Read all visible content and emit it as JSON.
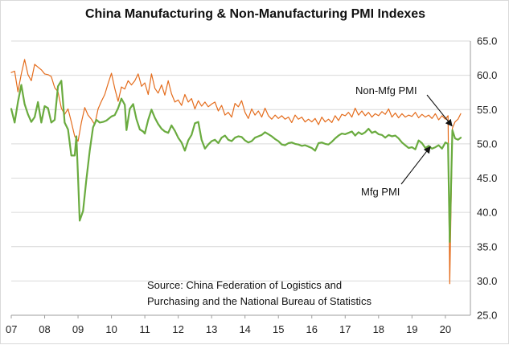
{
  "chart_data": {
    "type": "line",
    "title": "China Manufacturing & Non-Manufacturing PMI Indexes",
    "xlabel": "",
    "ylabel": "",
    "x_tick_labels": [
      "07",
      "08",
      "09",
      "10",
      "11",
      "12",
      "13",
      "14",
      "15",
      "16",
      "17",
      "18",
      "19",
      "20"
    ],
    "xlim": [
      2007.0,
      2020.75
    ],
    "ylim": [
      25.0,
      65.0
    ],
    "y_ticks": [
      25.0,
      30.0,
      35.0,
      40.0,
      45.0,
      50.0,
      55.0,
      60.0,
      65.0
    ],
    "y_tick_labels": [
      "25.0",
      "30.0",
      "35.0",
      "40.0",
      "45.0",
      "50.0",
      "55.0",
      "60.0",
      "65.0"
    ],
    "y_axis_position": "right",
    "grid": true,
    "series": [
      {
        "name": "Non-Mfg PMI",
        "color": "#e46c1c",
        "points": [
          [
            2007.0,
            60.4
          ],
          [
            2007.1,
            60.6
          ],
          [
            2007.2,
            57.6
          ],
          [
            2007.3,
            60.2
          ],
          [
            2007.4,
            62.3
          ],
          [
            2007.5,
            60.1
          ],
          [
            2007.6,
            59.2
          ],
          [
            2007.7,
            61.6
          ],
          [
            2007.8,
            61.2
          ],
          [
            2007.9,
            60.8
          ],
          [
            2008.0,
            60.2
          ],
          [
            2008.1,
            60.1
          ],
          [
            2008.2,
            59.8
          ],
          [
            2008.3,
            58.2
          ],
          [
            2008.4,
            57.6
          ],
          [
            2008.5,
            55.2
          ],
          [
            2008.6,
            54.3
          ],
          [
            2008.7,
            55.1
          ],
          [
            2008.8,
            53.2
          ],
          [
            2008.9,
            51.1
          ],
          [
            2009.0,
            50.4
          ],
          [
            2009.1,
            53.1
          ],
          [
            2009.2,
            55.3
          ],
          [
            2009.3,
            54.2
          ],
          [
            2009.4,
            53.6
          ],
          [
            2009.5,
            52.8
          ],
          [
            2009.6,
            55.1
          ],
          [
            2009.7,
            56.2
          ],
          [
            2009.8,
            57.2
          ],
          [
            2009.9,
            58.8
          ],
          [
            2010.0,
            60.3
          ],
          [
            2010.1,
            58.1
          ],
          [
            2010.2,
            56.2
          ],
          [
            2010.3,
            58.3
          ],
          [
            2010.4,
            58.0
          ],
          [
            2010.5,
            59.2
          ],
          [
            2010.6,
            58.6
          ],
          [
            2010.7,
            59.2
          ],
          [
            2010.8,
            60.2
          ],
          [
            2010.9,
            58.4
          ],
          [
            2011.0,
            58.9
          ],
          [
            2011.1,
            57.2
          ],
          [
            2011.2,
            60.2
          ],
          [
            2011.3,
            58.1
          ],
          [
            2011.4,
            57.4
          ],
          [
            2011.5,
            58.6
          ],
          [
            2011.6,
            57.1
          ],
          [
            2011.7,
            59.2
          ],
          [
            2011.8,
            57.3
          ],
          [
            2011.9,
            56.1
          ],
          [
            2012.0,
            56.4
          ],
          [
            2012.1,
            55.6
          ],
          [
            2012.2,
            57.2
          ],
          [
            2012.3,
            56.1
          ],
          [
            2012.4,
            56.6
          ],
          [
            2012.5,
            55.1
          ],
          [
            2012.6,
            56.3
          ],
          [
            2012.7,
            55.5
          ],
          [
            2012.8,
            56.1
          ],
          [
            2012.9,
            55.4
          ],
          [
            2013.0,
            55.8
          ],
          [
            2013.1,
            56.1
          ],
          [
            2013.2,
            54.8
          ],
          [
            2013.3,
            55.6
          ],
          [
            2013.4,
            54.2
          ],
          [
            2013.5,
            54.6
          ],
          [
            2013.6,
            53.9
          ],
          [
            2013.7,
            55.9
          ],
          [
            2013.8,
            55.4
          ],
          [
            2013.9,
            56.3
          ],
          [
            2014.0,
            54.6
          ],
          [
            2014.1,
            53.7
          ],
          [
            2014.2,
            55.1
          ],
          [
            2014.3,
            54.2
          ],
          [
            2014.4,
            54.8
          ],
          [
            2014.5,
            53.9
          ],
          [
            2014.6,
            55.2
          ],
          [
            2014.7,
            54.1
          ],
          [
            2014.8,
            53.6
          ],
          [
            2014.9,
            54.2
          ],
          [
            2015.0,
            53.7
          ],
          [
            2015.1,
            54.1
          ],
          [
            2015.2,
            53.6
          ],
          [
            2015.3,
            53.9
          ],
          [
            2015.4,
            53.1
          ],
          [
            2015.5,
            54.2
          ],
          [
            2015.6,
            53.6
          ],
          [
            2015.7,
            53.9
          ],
          [
            2015.8,
            53.2
          ],
          [
            2015.9,
            53.6
          ],
          [
            2016.0,
            53.2
          ],
          [
            2016.1,
            53.7
          ],
          [
            2016.2,
            52.8
          ],
          [
            2016.3,
            53.9
          ],
          [
            2016.4,
            53.2
          ],
          [
            2016.5,
            53.6
          ],
          [
            2016.6,
            53.1
          ],
          [
            2016.7,
            54.1
          ],
          [
            2016.8,
            53.4
          ],
          [
            2016.9,
            54.3
          ],
          [
            2017.0,
            54.1
          ],
          [
            2017.1,
            54.6
          ],
          [
            2017.2,
            53.9
          ],
          [
            2017.3,
            55.2
          ],
          [
            2017.4,
            54.2
          ],
          [
            2017.5,
            54.8
          ],
          [
            2017.6,
            54.1
          ],
          [
            2017.7,
            54.6
          ],
          [
            2017.8,
            53.9
          ],
          [
            2017.9,
            54.4
          ],
          [
            2018.0,
            54.1
          ],
          [
            2018.1,
            54.7
          ],
          [
            2018.2,
            54.3
          ],
          [
            2018.3,
            55.1
          ],
          [
            2018.4,
            53.9
          ],
          [
            2018.5,
            54.5
          ],
          [
            2018.6,
            53.8
          ],
          [
            2018.7,
            54.4
          ],
          [
            2018.8,
            53.9
          ],
          [
            2018.9,
            54.2
          ],
          [
            2019.0,
            54.0
          ],
          [
            2019.1,
            54.6
          ],
          [
            2019.2,
            53.8
          ],
          [
            2019.3,
            54.3
          ],
          [
            2019.4,
            53.9
          ],
          [
            2019.5,
            54.2
          ],
          [
            2019.6,
            53.7
          ],
          [
            2019.7,
            54.4
          ],
          [
            2019.8,
            53.5
          ],
          [
            2019.9,
            54.1
          ],
          [
            2020.0,
            53.6
          ],
          [
            2020.08,
            54.1
          ],
          [
            2020.13,
            29.6
          ],
          [
            2020.21,
            52.3
          ],
          [
            2020.29,
            53.2
          ],
          [
            2020.38,
            53.6
          ],
          [
            2020.46,
            54.4
          ]
        ]
      },
      {
        "name": "Mfg PMI",
        "color": "#6aab3f",
        "points": [
          [
            2007.0,
            55.1
          ],
          [
            2007.1,
            53.1
          ],
          [
            2007.2,
            56.1
          ],
          [
            2007.3,
            58.6
          ],
          [
            2007.4,
            55.8
          ],
          [
            2007.5,
            54.3
          ],
          [
            2007.6,
            53.2
          ],
          [
            2007.7,
            53.9
          ],
          [
            2007.8,
            56.1
          ],
          [
            2007.9,
            53.1
          ],
          [
            2008.0,
            55.5
          ],
          [
            2008.1,
            55.2
          ],
          [
            2008.2,
            53.1
          ],
          [
            2008.3,
            53.5
          ],
          [
            2008.4,
            58.4
          ],
          [
            2008.5,
            59.2
          ],
          [
            2008.6,
            53.1
          ],
          [
            2008.7,
            52.1
          ],
          [
            2008.8,
            48.3
          ],
          [
            2008.9,
            48.3
          ],
          [
            2008.95,
            51.1
          ],
          [
            2009.0,
            45.0
          ],
          [
            2009.05,
            38.8
          ],
          [
            2009.15,
            40.2
          ],
          [
            2009.25,
            44.8
          ],
          [
            2009.35,
            49.0
          ],
          [
            2009.45,
            52.4
          ],
          [
            2009.55,
            53.5
          ],
          [
            2009.65,
            53.1
          ],
          [
            2009.75,
            53.2
          ],
          [
            2009.85,
            53.4
          ],
          [
            2010.0,
            54.0
          ],
          [
            2010.1,
            54.2
          ],
          [
            2010.2,
            55.2
          ],
          [
            2010.3,
            56.6
          ],
          [
            2010.4,
            55.7
          ],
          [
            2010.45,
            52.0
          ],
          [
            2010.55,
            55.1
          ],
          [
            2010.65,
            55.8
          ],
          [
            2010.75,
            53.6
          ],
          [
            2010.85,
            52.1
          ],
          [
            2010.95,
            51.8
          ],
          [
            2011.0,
            51.5
          ],
          [
            2011.1,
            53.5
          ],
          [
            2011.2,
            55.0
          ],
          [
            2011.3,
            53.8
          ],
          [
            2011.4,
            52.9
          ],
          [
            2011.5,
            52.2
          ],
          [
            2011.6,
            51.8
          ],
          [
            2011.7,
            51.6
          ],
          [
            2011.8,
            52.7
          ],
          [
            2011.9,
            51.9
          ],
          [
            2012.0,
            50.9
          ],
          [
            2012.1,
            50.2
          ],
          [
            2012.2,
            49.0
          ],
          [
            2012.3,
            50.5
          ],
          [
            2012.4,
            51.3
          ],
          [
            2012.5,
            53.0
          ],
          [
            2012.6,
            53.2
          ],
          [
            2012.7,
            50.6
          ],
          [
            2012.8,
            49.3
          ],
          [
            2012.9,
            49.9
          ],
          [
            2013.0,
            50.4
          ],
          [
            2013.1,
            50.6
          ],
          [
            2013.2,
            50.1
          ],
          [
            2013.3,
            50.9
          ],
          [
            2013.4,
            51.2
          ],
          [
            2013.5,
            50.6
          ],
          [
            2013.6,
            50.4
          ],
          [
            2013.7,
            50.9
          ],
          [
            2013.8,
            51.1
          ],
          [
            2013.9,
            51.0
          ],
          [
            2014.0,
            50.5
          ],
          [
            2014.1,
            50.2
          ],
          [
            2014.2,
            50.4
          ],
          [
            2014.3,
            50.9
          ],
          [
            2014.4,
            51.1
          ],
          [
            2014.5,
            51.3
          ],
          [
            2014.6,
            51.7
          ],
          [
            2014.7,
            51.4
          ],
          [
            2014.8,
            51.1
          ],
          [
            2014.9,
            50.7
          ],
          [
            2015.0,
            50.4
          ],
          [
            2015.1,
            49.9
          ],
          [
            2015.2,
            49.8
          ],
          [
            2015.3,
            50.1
          ],
          [
            2015.4,
            50.2
          ],
          [
            2015.5,
            50.0
          ],
          [
            2015.6,
            49.9
          ],
          [
            2015.7,
            49.7
          ],
          [
            2015.8,
            49.8
          ],
          [
            2015.9,
            49.6
          ],
          [
            2016.0,
            49.4
          ],
          [
            2016.1,
            49.0
          ],
          [
            2016.2,
            50.1
          ],
          [
            2016.3,
            50.2
          ],
          [
            2016.4,
            50.0
          ],
          [
            2016.5,
            49.9
          ],
          [
            2016.6,
            50.3
          ],
          [
            2016.7,
            50.8
          ],
          [
            2016.8,
            51.2
          ],
          [
            2016.9,
            51.5
          ],
          [
            2017.0,
            51.4
          ],
          [
            2017.1,
            51.6
          ],
          [
            2017.2,
            51.8
          ],
          [
            2017.3,
            51.2
          ],
          [
            2017.4,
            51.7
          ],
          [
            2017.5,
            51.4
          ],
          [
            2017.6,
            51.7
          ],
          [
            2017.7,
            52.2
          ],
          [
            2017.8,
            51.6
          ],
          [
            2017.9,
            51.8
          ],
          [
            2018.0,
            51.4
          ],
          [
            2018.1,
            51.3
          ],
          [
            2018.2,
            50.9
          ],
          [
            2018.3,
            51.3
          ],
          [
            2018.4,
            51.1
          ],
          [
            2018.5,
            51.2
          ],
          [
            2018.6,
            50.8
          ],
          [
            2018.7,
            50.2
          ],
          [
            2018.8,
            49.8
          ],
          [
            2018.9,
            49.4
          ],
          [
            2019.0,
            49.5
          ],
          [
            2019.1,
            49.2
          ],
          [
            2019.2,
            50.5
          ],
          [
            2019.3,
            50.1
          ],
          [
            2019.4,
            49.4
          ],
          [
            2019.5,
            49.7
          ],
          [
            2019.6,
            49.3
          ],
          [
            2019.7,
            49.5
          ],
          [
            2019.8,
            49.8
          ],
          [
            2019.9,
            49.3
          ],
          [
            2020.0,
            50.2
          ],
          [
            2020.08,
            50.0
          ],
          [
            2020.13,
            35.7
          ],
          [
            2020.21,
            52.0
          ],
          [
            2020.29,
            50.8
          ],
          [
            2020.38,
            50.6
          ],
          [
            2020.46,
            50.9
          ]
        ]
      }
    ],
    "annotations": [
      {
        "text": "Non-Mfg PMI",
        "arrow_to": [
          2020.2,
          52.6
        ]
      },
      {
        "text": "Mfg PMI",
        "arrow_to": [
          2019.55,
          49.6
        ]
      }
    ],
    "source_note": [
      "Source:  China Federation  of Logistics and",
      "Purchasing and the National Bureau of Statistics"
    ]
  }
}
